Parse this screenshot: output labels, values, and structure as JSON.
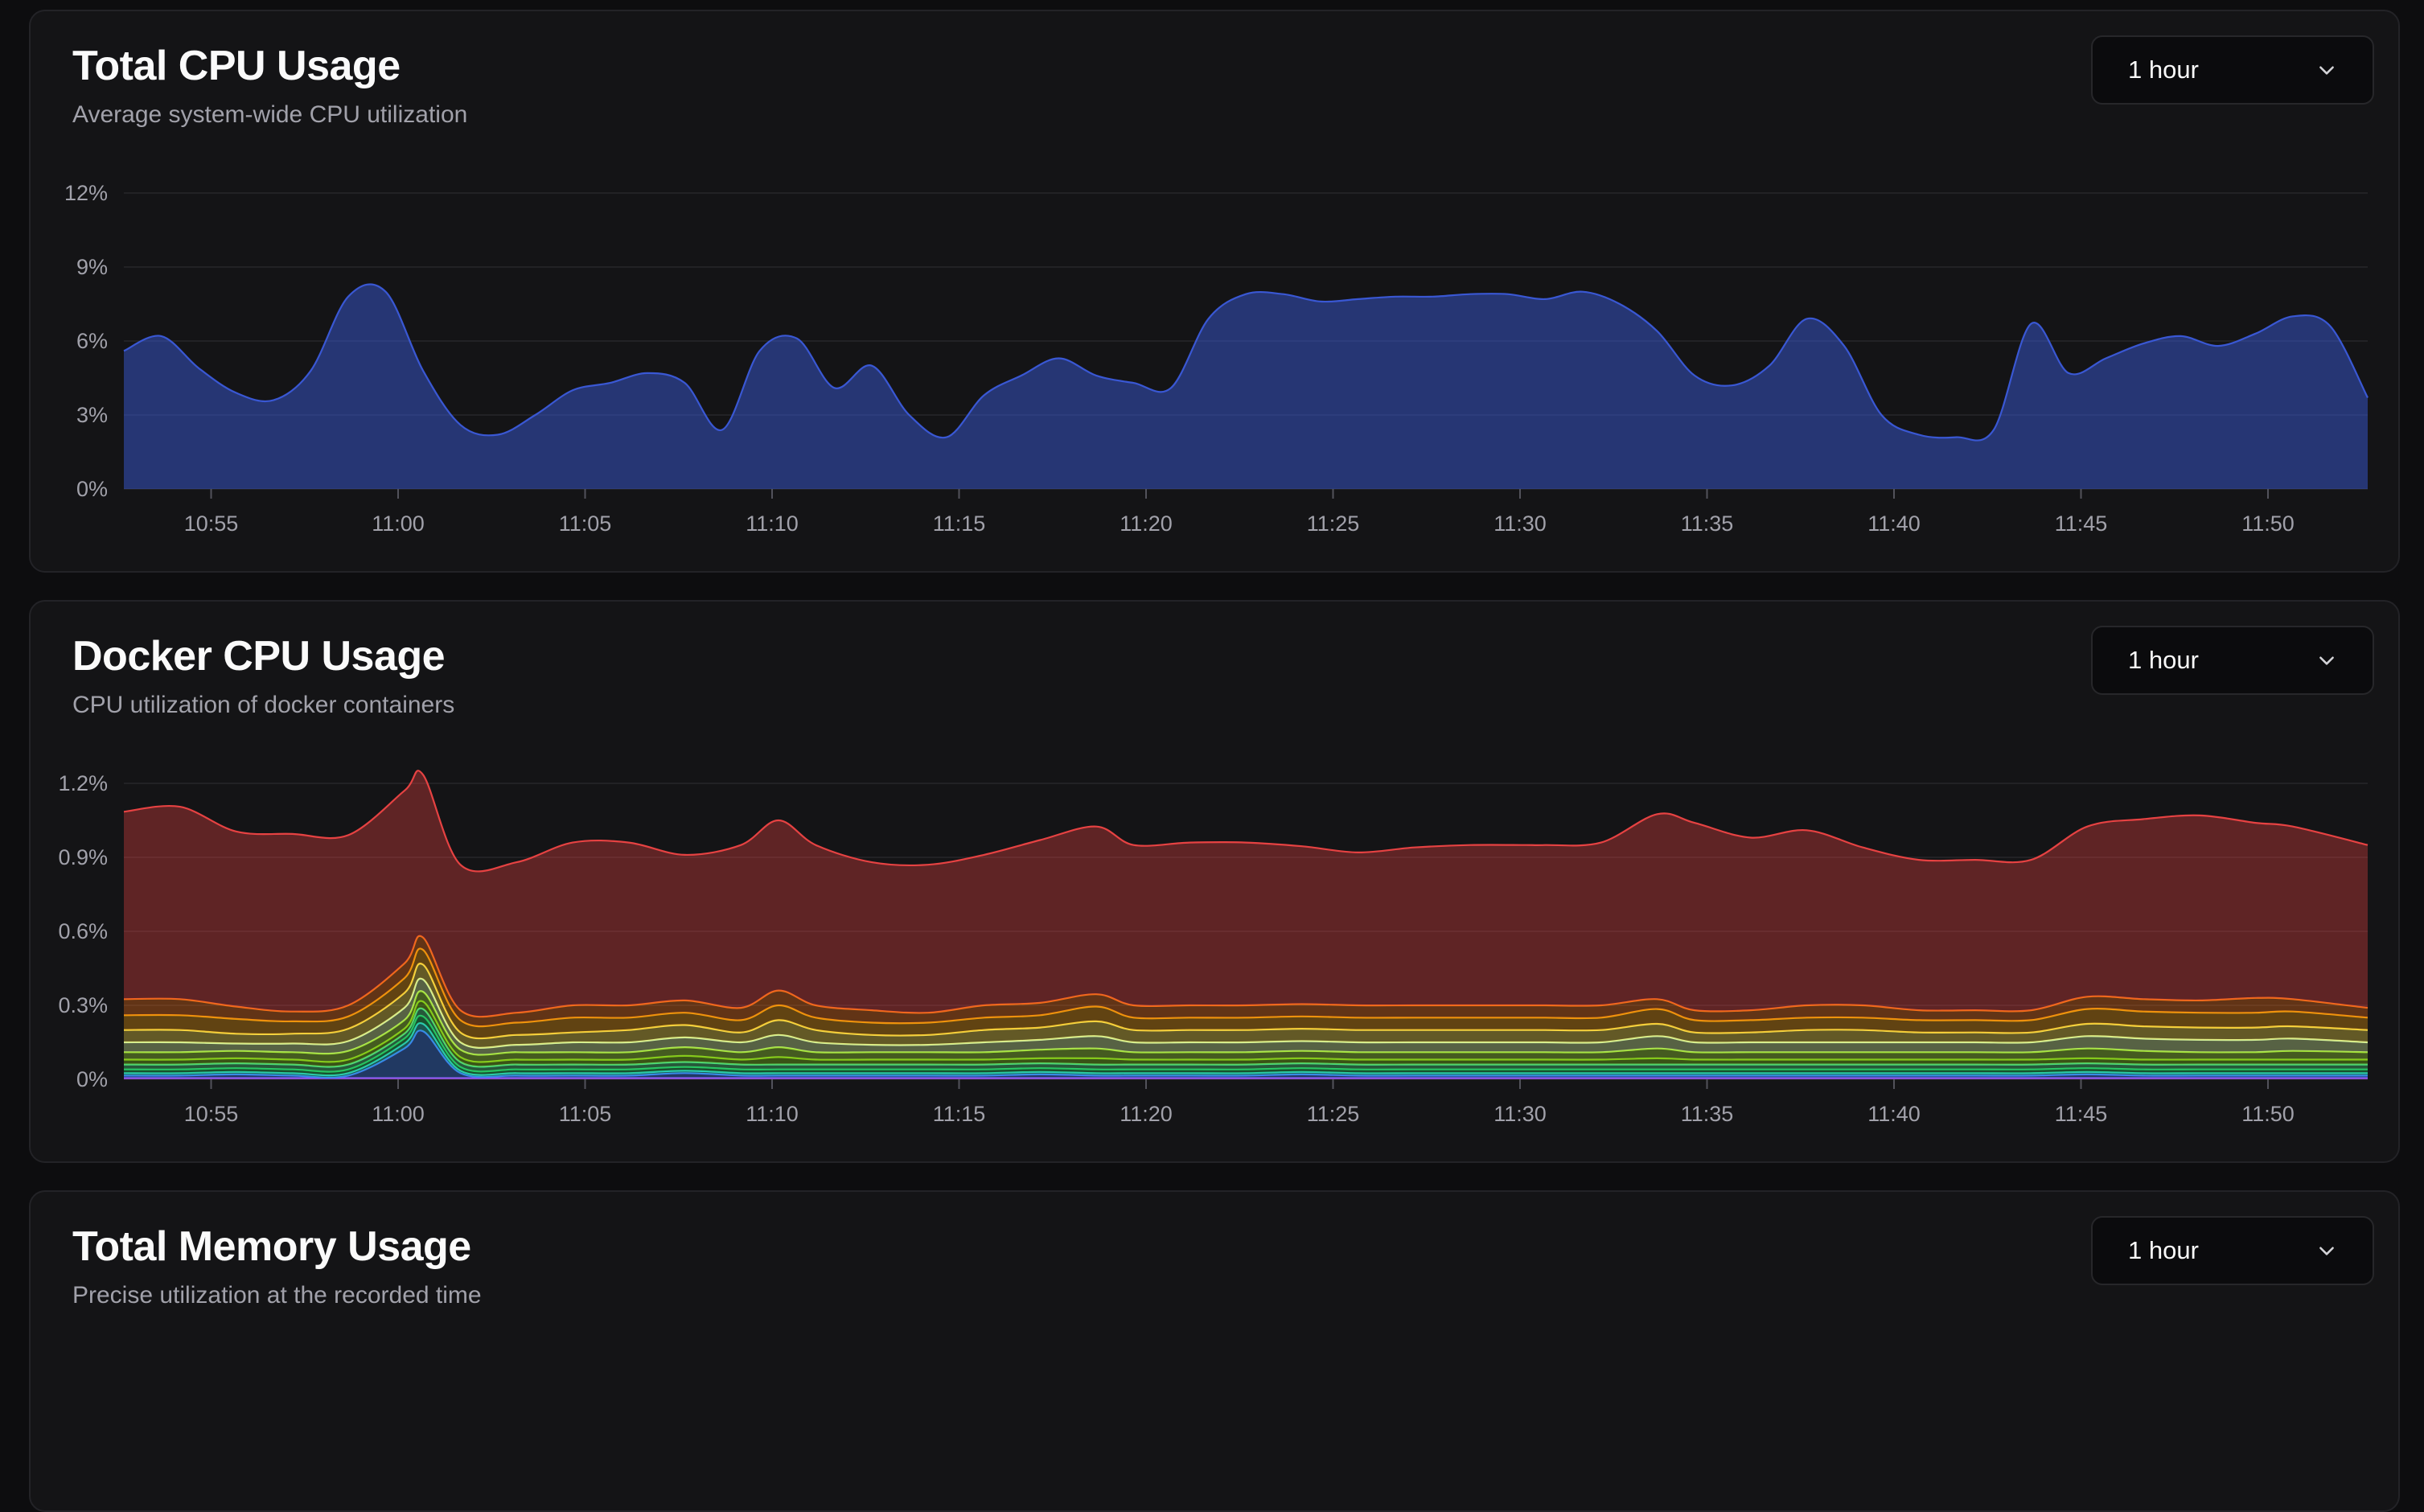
{
  "cards": [
    {
      "title": "Total CPU Usage",
      "subtitle": "Average system-wide CPU utilization",
      "range_select": {
        "label": "1 hour"
      }
    },
    {
      "title": "Docker CPU Usage",
      "subtitle": "CPU utilization of docker containers",
      "range_select": {
        "label": "1 hour"
      }
    },
    {
      "title": "Total Memory Usage",
      "subtitle": "Precise utilization at the recorded time",
      "range_select": {
        "label": "1 hour"
      }
    }
  ],
  "chart_data": [
    {
      "type": "area",
      "title": "Total CPU Usage",
      "xlabel": "",
      "ylabel": "",
      "x_ticks": [
        "10:55",
        "11:00",
        "11:05",
        "11:10",
        "11:15",
        "11:20",
        "11:25",
        "11:30",
        "11:35",
        "11:40",
        "11:45",
        "11:50"
      ],
      "y_ticks": [
        "0%",
        "3%",
        "6%",
        "9%",
        "12%"
      ],
      "xlim": [
        "10:52:40",
        "11:52:40"
      ],
      "ylim": [
        0,
        12
      ],
      "grid": true,
      "color": "#3b5bdb",
      "series": [
        {
          "x": [
            "10:52:40",
            "10:53:40",
            "10:54:40",
            "10:55:40",
            "10:56:40",
            "10:57:40",
            "10:58:40",
            "10:59:40",
            "11:00:40",
            "11:01:40",
            "11:02:40",
            "11:03:40",
            "11:04:40",
            "11:05:40",
            "11:06:40",
            "11:07:40",
            "11:08:40",
            "11:09:40",
            "11:10:40",
            "11:11:40",
            "11:12:40",
            "11:13:40",
            "11:14:40",
            "11:15:40",
            "11:16:40",
            "11:17:40",
            "11:18:40",
            "11:19:40",
            "11:20:40",
            "11:21:40",
            "11:22:40",
            "11:23:40",
            "11:24:40",
            "11:25:40",
            "11:26:40",
            "11:27:40",
            "11:28:40",
            "11:29:40",
            "11:30:40",
            "11:31:40",
            "11:32:40",
            "11:33:40",
            "11:34:40",
            "11:35:40",
            "11:36:40",
            "11:37:40",
            "11:38:40",
            "11:39:40",
            "11:40:40",
            "11:41:40",
            "11:42:40",
            "11:43:40",
            "11:44:40",
            "11:45:40",
            "11:46:40",
            "11:47:40",
            "11:48:40",
            "11:49:40",
            "11:50:40",
            "11:51:40",
            "11:52:40"
          ],
          "values": [
            5.6,
            6.2,
            4.9,
            3.9,
            3.6,
            4.8,
            7.8,
            8.0,
            4.8,
            2.6,
            2.2,
            3.0,
            4.0,
            4.3,
            4.7,
            4.3,
            2.4,
            5.6,
            6.1,
            4.1,
            5.0,
            3.0,
            2.1,
            3.8,
            4.6,
            5.3,
            4.6,
            4.3,
            4.1,
            6.9,
            7.9,
            7.9,
            7.6,
            7.7,
            7.8,
            7.8,
            7.9,
            7.9,
            7.7,
            8.0,
            7.5,
            6.4,
            4.6,
            4.2,
            5.0,
            6.9,
            5.8,
            3.0,
            2.2,
            2.1,
            2.4,
            6.7,
            4.7,
            5.3,
            5.9,
            6.2,
            5.8,
            6.3,
            7.0,
            6.6,
            3.7
          ]
        }
      ]
    },
    {
      "type": "area",
      "stacked": true,
      "title": "Docker CPU Usage",
      "xlabel": "",
      "ylabel": "",
      "x_ticks": [
        "10:55",
        "11:00",
        "11:05",
        "11:10",
        "11:15",
        "11:20",
        "11:25",
        "11:30",
        "11:35",
        "11:40",
        "11:45",
        "11:50"
      ],
      "y_ticks": [
        "0%",
        "0.3%",
        "0.6%",
        "0.9%",
        "1.2%"
      ],
      "xlim": [
        "10:52:40",
        "11:52:40"
      ],
      "ylim": [
        0,
        1.2
      ],
      "grid": true,
      "x": [
        "10:52:40",
        "10:54:10",
        "10:55:40",
        "10:57:10",
        "10:58:40",
        "11:00:10",
        "11:00:40",
        "11:01:40",
        "11:03:10",
        "11:04:40",
        "11:06:10",
        "11:07:40",
        "11:09:10",
        "11:10:10",
        "11:11:10",
        "11:12:40",
        "11:14:10",
        "11:15:40",
        "11:17:10",
        "11:18:40",
        "11:19:40",
        "11:21:10",
        "11:22:40",
        "11:24:10",
        "11:25:40",
        "11:27:10",
        "11:28:40",
        "11:30:10",
        "11:30:40",
        "11:32:10",
        "11:33:40",
        "11:34:40",
        "11:36:10",
        "11:37:40",
        "11:39:10",
        "11:40:40",
        "11:42:10",
        "11:43:40",
        "11:45:10",
        "11:46:40",
        "11:48:10",
        "11:49:40",
        "11:50:40",
        "11:52:40"
      ],
      "series": [
        {
          "color": "#a855f7",
          "values": [
            0.005,
            0.005,
            0.005,
            0.005,
            0.005,
            0.005,
            0.005,
            0.005,
            0.005,
            0.005,
            0.005,
            0.005,
            0.005,
            0.005,
            0.005,
            0.005,
            0.005,
            0.005,
            0.005,
            0.005,
            0.005,
            0.005,
            0.005,
            0.005,
            0.005,
            0.005,
            0.005,
            0.005,
            0.005,
            0.005,
            0.005,
            0.005,
            0.005,
            0.005,
            0.005,
            0.005,
            0.005,
            0.005,
            0.005,
            0.005,
            0.005,
            0.005,
            0.005,
            0.005
          ]
        },
        {
          "color": "#3b82f6",
          "values": [
            0.01,
            0.01,
            0.015,
            0.01,
            0.01,
            0.12,
            0.19,
            0.02,
            0.01,
            0.01,
            0.01,
            0.02,
            0.01,
            0.01,
            0.01,
            0.01,
            0.01,
            0.01,
            0.015,
            0.01,
            0.01,
            0.01,
            0.01,
            0.015,
            0.01,
            0.01,
            0.01,
            0.01,
            0.01,
            0.01,
            0.01,
            0.01,
            0.01,
            0.01,
            0.01,
            0.01,
            0.01,
            0.01,
            0.015,
            0.01,
            0.01,
            0.01,
            0.01,
            0.01
          ]
        },
        {
          "color": "#2dd4bf",
          "values": [
            0.01,
            0.01,
            0.01,
            0.01,
            0.01,
            0.02,
            0.03,
            0.01,
            0.01,
            0.01,
            0.01,
            0.01,
            0.01,
            0.01,
            0.01,
            0.01,
            0.01,
            0.01,
            0.01,
            0.01,
            0.01,
            0.01,
            0.01,
            0.01,
            0.01,
            0.01,
            0.01,
            0.01,
            0.01,
            0.01,
            0.01,
            0.01,
            0.01,
            0.01,
            0.01,
            0.01,
            0.01,
            0.01,
            0.01,
            0.01,
            0.01,
            0.01,
            0.01,
            0.01
          ]
        },
        {
          "color": "#22c55e",
          "values": [
            0.015,
            0.015,
            0.015,
            0.015,
            0.015,
            0.02,
            0.03,
            0.015,
            0.015,
            0.015,
            0.015,
            0.015,
            0.015,
            0.015,
            0.015,
            0.015,
            0.015,
            0.015,
            0.015,
            0.015,
            0.015,
            0.015,
            0.015,
            0.015,
            0.015,
            0.015,
            0.015,
            0.015,
            0.015,
            0.015,
            0.015,
            0.015,
            0.015,
            0.015,
            0.015,
            0.015,
            0.015,
            0.015,
            0.015,
            0.015,
            0.015,
            0.015,
            0.015,
            0.015
          ]
        },
        {
          "color": "#4ade80",
          "values": [
            0.02,
            0.02,
            0.02,
            0.02,
            0.02,
            0.02,
            0.03,
            0.02,
            0.02,
            0.02,
            0.02,
            0.02,
            0.02,
            0.02,
            0.02,
            0.02,
            0.02,
            0.02,
            0.02,
            0.02,
            0.02,
            0.02,
            0.02,
            0.02,
            0.02,
            0.02,
            0.02,
            0.02,
            0.02,
            0.02,
            0.02,
            0.02,
            0.02,
            0.02,
            0.02,
            0.02,
            0.02,
            0.02,
            0.02,
            0.02,
            0.02,
            0.02,
            0.02,
            0.02
          ]
        },
        {
          "color": "#84cc16",
          "values": [
            0.02,
            0.02,
            0.02,
            0.02,
            0.02,
            0.02,
            0.03,
            0.02,
            0.02,
            0.02,
            0.02,
            0.025,
            0.02,
            0.03,
            0.02,
            0.02,
            0.02,
            0.02,
            0.02,
            0.025,
            0.02,
            0.02,
            0.02,
            0.02,
            0.02,
            0.02,
            0.02,
            0.02,
            0.02,
            0.02,
            0.025,
            0.02,
            0.02,
            0.02,
            0.02,
            0.02,
            0.02,
            0.02,
            0.02,
            0.02,
            0.02,
            0.02,
            0.02,
            0.02
          ]
        },
        {
          "color": "#a3e635",
          "values": [
            0.03,
            0.03,
            0.03,
            0.03,
            0.035,
            0.035,
            0.04,
            0.03,
            0.03,
            0.03,
            0.03,
            0.035,
            0.03,
            0.04,
            0.03,
            0.03,
            0.03,
            0.03,
            0.035,
            0.04,
            0.03,
            0.03,
            0.03,
            0.03,
            0.03,
            0.03,
            0.03,
            0.03,
            0.03,
            0.03,
            0.04,
            0.03,
            0.03,
            0.03,
            0.03,
            0.03,
            0.03,
            0.03,
            0.04,
            0.035,
            0.03,
            0.03,
            0.035,
            0.03
          ]
        },
        {
          "color": "#d9f99d",
          "values": [
            0.04,
            0.04,
            0.03,
            0.035,
            0.04,
            0.05,
            0.05,
            0.03,
            0.03,
            0.04,
            0.04,
            0.04,
            0.04,
            0.05,
            0.04,
            0.03,
            0.03,
            0.04,
            0.04,
            0.05,
            0.04,
            0.04,
            0.04,
            0.04,
            0.04,
            0.04,
            0.04,
            0.04,
            0.04,
            0.04,
            0.05,
            0.04,
            0.04,
            0.04,
            0.04,
            0.04,
            0.04,
            0.04,
            0.05,
            0.05,
            0.05,
            0.05,
            0.05,
            0.04
          ]
        },
        {
          "color": "#fde047",
          "values": [
            0.05,
            0.05,
            0.04,
            0.04,
            0.05,
            0.06,
            0.06,
            0.04,
            0.04,
            0.04,
            0.05,
            0.05,
            0.04,
            0.06,
            0.05,
            0.04,
            0.04,
            0.05,
            0.05,
            0.06,
            0.05,
            0.05,
            0.05,
            0.05,
            0.05,
            0.05,
            0.05,
            0.05,
            0.05,
            0.05,
            0.05,
            0.04,
            0.04,
            0.05,
            0.05,
            0.04,
            0.04,
            0.04,
            0.05,
            0.05,
            0.05,
            0.05,
            0.05,
            0.05
          ]
        },
        {
          "color": "#f59e0b",
          "values": [
            0.06,
            0.06,
            0.06,
            0.05,
            0.05,
            0.06,
            0.06,
            0.05,
            0.05,
            0.06,
            0.05,
            0.05,
            0.05,
            0.06,
            0.05,
            0.05,
            0.05,
            0.05,
            0.05,
            0.06,
            0.05,
            0.05,
            0.05,
            0.05,
            0.05,
            0.05,
            0.05,
            0.05,
            0.05,
            0.05,
            0.06,
            0.05,
            0.05,
            0.05,
            0.05,
            0.05,
            0.05,
            0.05,
            0.06,
            0.06,
            0.06,
            0.06,
            0.06,
            0.05
          ]
        },
        {
          "color": "#f97316",
          "values": [
            0.065,
            0.065,
            0.05,
            0.04,
            0.045,
            0.06,
            0.05,
            0.04,
            0.04,
            0.05,
            0.05,
            0.05,
            0.05,
            0.06,
            0.05,
            0.05,
            0.04,
            0.05,
            0.05,
            0.05,
            0.05,
            0.05,
            0.05,
            0.05,
            0.05,
            0.05,
            0.05,
            0.05,
            0.05,
            0.05,
            0.04,
            0.04,
            0.04,
            0.05,
            0.05,
            0.04,
            0.04,
            0.04,
            0.05,
            0.05,
            0.05,
            0.06,
            0.05,
            0.04
          ]
        },
        {
          "color": "#ef4444",
          "values": [
            0.76,
            0.78,
            0.71,
            0.72,
            0.69,
            0.7,
            0.66,
            0.59,
            0.61,
            0.66,
            0.66,
            0.59,
            0.66,
            0.69,
            0.65,
            0.6,
            0.6,
            0.61,
            0.66,
            0.68,
            0.65,
            0.66,
            0.66,
            0.64,
            0.62,
            0.64,
            0.65,
            0.65,
            0.65,
            0.66,
            0.75,
            0.76,
            0.7,
            0.71,
            0.64,
            0.61,
            0.61,
            0.61,
            0.69,
            0.73,
            0.75,
            0.71,
            0.7,
            0.66
          ]
        }
      ]
    }
  ]
}
